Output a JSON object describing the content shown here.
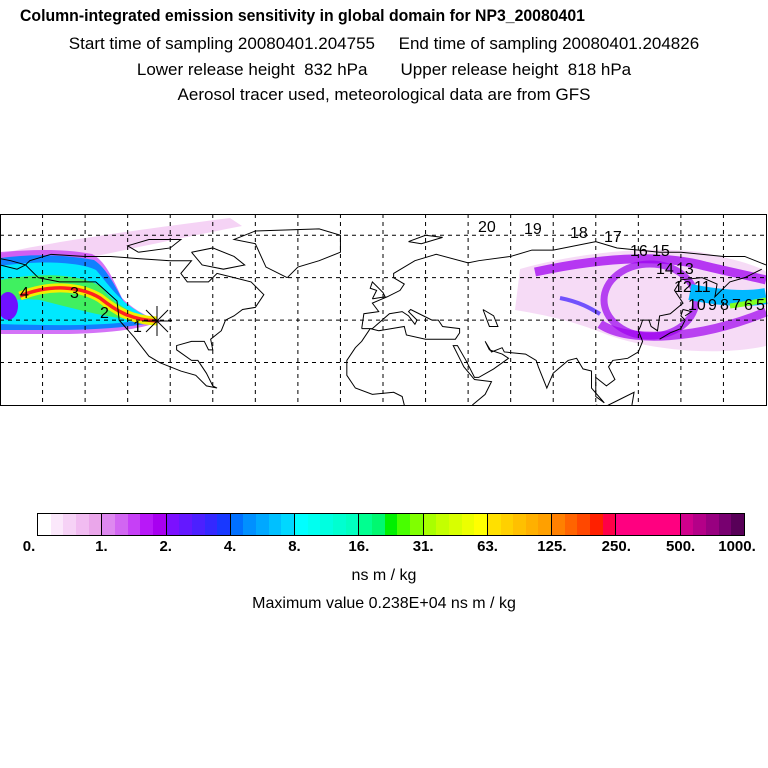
{
  "header": {
    "title": "Column-integrated emission sensitivity in global domain for NP3_20080401",
    "sampling_line": "Start time of sampling 20080401.204755     End time of sampling 20080401.204826",
    "release_line": "Lower release height  832 hPa       Upper release height  818 hPa",
    "tracer_line": "Aerosol tracer used, meteorological data are from GFS"
  },
  "map": {
    "projection": "lat-lon",
    "lon_range": [
      -180,
      180
    ],
    "lat_range": [
      0,
      90
    ],
    "grid_spacing_deg": 20,
    "release_marker": "x-star-icon",
    "trajectory_labels": [
      "1",
      "2",
      "3",
      "4",
      "5",
      "6",
      "7",
      "8",
      "9",
      "10",
      "11",
      "12",
      "13",
      "14",
      "15",
      "16",
      "17",
      "18",
      "19",
      "20"
    ]
  },
  "colorbar": {
    "labels": [
      "0.",
      "1.",
      "2.",
      "4.",
      "8.",
      "16.",
      "31.",
      "63.",
      "125.",
      "250.",
      "500.",
      "1000."
    ],
    "segments": [
      [
        "#ffffff",
        "#fbe8fb",
        "#f6d2f6",
        "#f1bcf1",
        "#eaa6ea"
      ],
      [
        "#de88f0",
        "#d266f2",
        "#c640f6",
        "#b818f8",
        "#a800f0"
      ],
      [
        "#7c10ff",
        "#6418ff",
        "#4c20ff",
        "#3428ff",
        "#1838ff"
      ],
      [
        "#0070ff",
        "#0090ff",
        "#00a8ff",
        "#00c0ff",
        "#00d8ff"
      ],
      [
        "#00ffff",
        "#00fff0",
        "#00ffe0",
        "#00ffd0",
        "#00ffc0"
      ],
      [
        "#00ff90",
        "#00f870",
        "#00f000",
        "#48ff00",
        "#80ff00"
      ],
      [
        "#a8ff00",
        "#c4ff00",
        "#d8ff00",
        "#ecff00",
        "#ffff00"
      ],
      [
        "#ffe000",
        "#ffd000",
        "#ffc000",
        "#ffb000",
        "#ffa000"
      ],
      [
        "#ff8000",
        "#ff6400",
        "#ff4800",
        "#ff2000",
        "#ff0048"
      ],
      [
        "#ff0080",
        "#ff0080",
        "#ff0080",
        "#ff0080",
        "#ff0080"
      ],
      [
        "#d0008c",
        "#b40088",
        "#980080",
        "#780070",
        "#580058"
      ]
    ],
    "units": "ns m / kg"
  },
  "footer": {
    "max_value": "Maximum value  0.238E+04 ns m / kg"
  }
}
